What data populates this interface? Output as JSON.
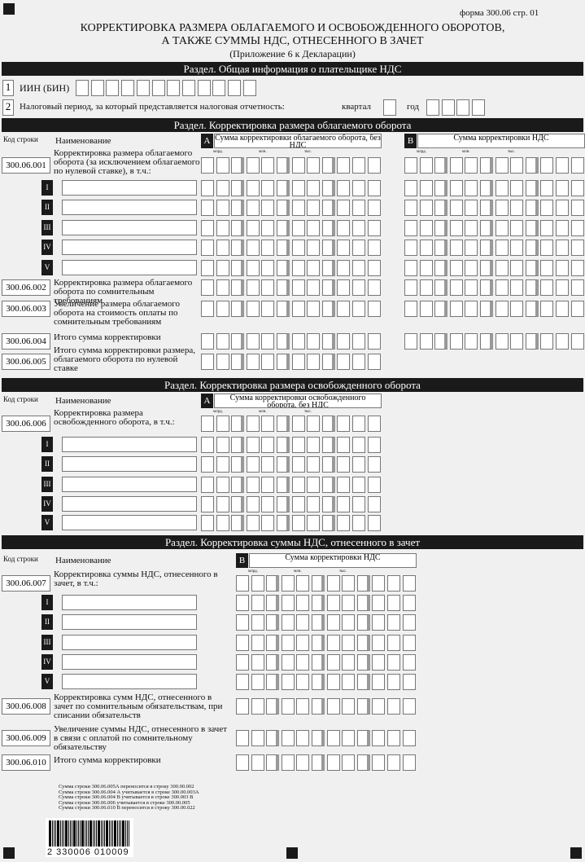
{
  "header": {
    "form": "форма 300.06 стр. 01",
    "title": [
      "КОРРЕКТИРОВКА РАЗМЕРА ОБЛАГАЕМОГО И ОСВОБОЖДЕННОГО ОБОРОТОВ,",
      "А ТАКЖЕ СУММЫ НДС, ОТНЕСЕННОГО В ЗАЧЕТ"
    ],
    "subtitle": "(Приложение 6 к Декларации)"
  },
  "general": {
    "title": "Раздел. Общая информация о плательщике НДС",
    "rows": [
      {
        "num": "1",
        "label": "ИИН (БИН)"
      },
      {
        "num": "2",
        "label": "Налоговый период, за который представляется налоговая отчетность:",
        "quarter": "квартал",
        "year": "год"
      }
    ]
  },
  "sections": [
    {
      "title": "Раздел. Корректировка размера облагаемого оборота",
      "code_header": "Код строки",
      "name_header": "Наименование",
      "columns": [
        {
          "letter": "A",
          "title": "Сумма корректировки облагаемого оборота, без НДС"
        },
        {
          "letter": "B",
          "title": "Сумма корректировки НДС"
        }
      ],
      "digit_groups": [
        "млрд.",
        "млн.",
        "тыс."
      ],
      "rows": [
        {
          "code": "300.06.001",
          "name": "Корректировка размера облагаемого оборота (за исключением облагаемого по нулевой ставке), в т.ч.:"
        },
        {
          "roman": "I"
        },
        {
          "roman": "II"
        },
        {
          "roman": "III"
        },
        {
          "roman": "IV"
        },
        {
          "roman": "V"
        },
        {
          "code": "300.06.002",
          "name": "Корректировка размера облагаемого оборота по сомнительным требованиям"
        },
        {
          "code": "300.06.003",
          "name": "Увеличение размера облагаемого оборота на стоимость оплаты по сомнительным требованиям"
        },
        {
          "code": "300.06.004",
          "name": "Итого сумма корректировки"
        },
        {
          "code": "300.06.005",
          "name": "Итого сумма корректировки размера, облагаемого оборота по нулевой ставке"
        }
      ]
    },
    {
      "title": "Раздел. Корректировка размера освобожденного оборота",
      "code_header": "Код строки",
      "name_header": "Наименование",
      "columns": [
        {
          "letter": "A",
          "title": "Сумма корректировки освобожденного оборота, без НДС"
        }
      ],
      "digit_groups": [
        "млрд.",
        "млн.",
        "тыс."
      ],
      "rows": [
        {
          "code": "300.06.006",
          "name": "Корректировка размера освобожденного оборота, в т.ч.:"
        },
        {
          "roman": "I"
        },
        {
          "roman": "II"
        },
        {
          "roman": "III"
        },
        {
          "roman": "IV"
        },
        {
          "roman": "V"
        }
      ]
    },
    {
      "title": "Раздел. Корректировка суммы НДС, отнесенного в зачет",
      "code_header": "Код строки",
      "name_header": "Наименование",
      "columns": [
        {
          "letter": "B",
          "title": "Сумма корректировки НДС"
        }
      ],
      "digit_groups": [
        "млрд.",
        "млн.",
        "тыс."
      ],
      "rows": [
        {
          "code": "300.06.007",
          "name": "Корректировка суммы НДС, отнесенного в зачет, в т.ч.:"
        },
        {
          "roman": "I"
        },
        {
          "roman": "II"
        },
        {
          "roman": "III"
        },
        {
          "roman": "IV"
        },
        {
          "roman": "V"
        },
        {
          "code": "300.06.008",
          "name": "Корректировка сумм НДС, отнесенного в зачет по сомнительным обязательствам, при списании обязательств"
        },
        {
          "code": "300.06.009",
          "name": "Увеличение суммы НДС, отнесенного в зачет в связи с оплатой по сомнительному обязательству"
        },
        {
          "code": "300.06.010",
          "name": "Итого сумма корректировки"
        }
      ]
    }
  ],
  "footnotes": [
    "Сумма строки 300.06.005А переносится в строку 300.00.002",
    "Сумма строки 300.06.004 А учитывается в строке 300.00.003А",
    "Сумма строки 300.06.004 В учитывается в строке 300.003 В",
    "Сумма строки 300.06.006 учитывается в строке 300.00.005",
    "Сумма строки 300.06.010 В переносится в строку 300.00.022"
  ],
  "barcode": "2 330006 010009"
}
